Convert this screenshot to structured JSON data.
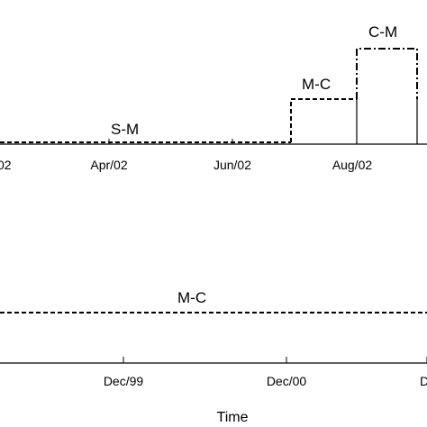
{
  "chart_data": [
    {
      "type": "line",
      "title": "",
      "xlabel": "",
      "ylabel": "",
      "x_tick_labels": [
        "02",
        "Apr/02",
        "Jun/02",
        "Aug/02"
      ],
      "steps": [
        {
          "label": "S-M",
          "from": "Feb/02",
          "to": "Jul/02",
          "level": 0,
          "style": "dashed"
        },
        {
          "label": "M-C",
          "from": "Jul/02",
          "to": "Aug/02",
          "level": 1,
          "style": "dashed"
        },
        {
          "label": "C-M",
          "from": "Aug/02",
          "to": "Sep/02",
          "level": 2,
          "style": "dash-dot"
        }
      ],
      "legend": "none",
      "grid": false
    },
    {
      "type": "line",
      "title": "",
      "xlabel": "Time",
      "ylabel": "",
      "x_tick_labels": [
        "Dec/99",
        "Dec/00",
        "D"
      ],
      "steps": [
        {
          "label": "M-C",
          "from": "Jun/99",
          "to": "Dec/01",
          "level": 0,
          "style": "dashed"
        }
      ],
      "legend": "none",
      "grid": false
    }
  ]
}
